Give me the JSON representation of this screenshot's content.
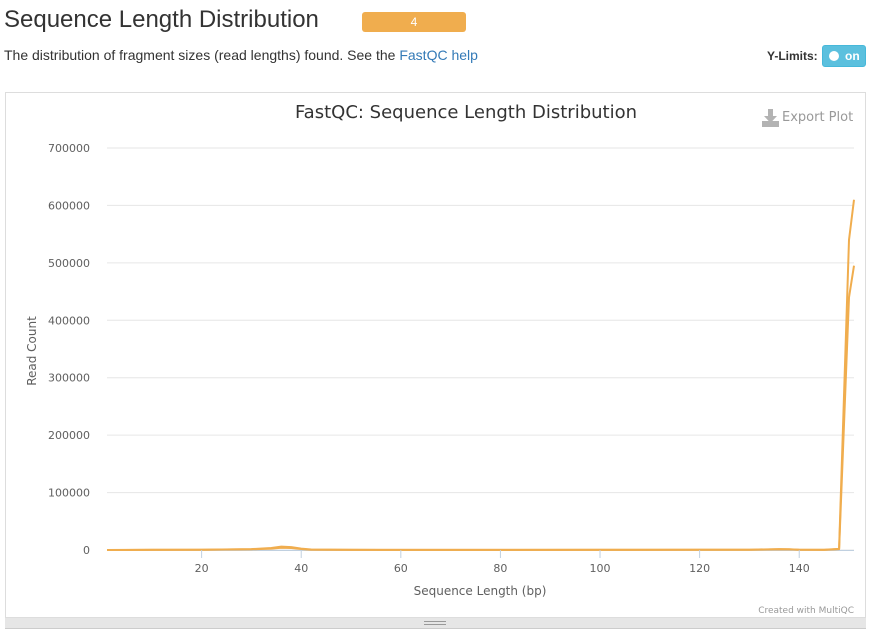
{
  "header": {
    "title": "Sequence Length Distribution",
    "badge": "4",
    "badge_color": "#f0ad4e"
  },
  "description": {
    "text": "The distribution of fragment sizes (read lengths) found. See the ",
    "link_text": "FastQC help"
  },
  "controls": {
    "ylimits_label": "Y-Limits:",
    "ylimits_toggle": "on"
  },
  "plot": {
    "export_label": "Export Plot",
    "credits": "Created with MultiQC"
  },
  "chart_data": {
    "type": "line",
    "title": "FastQC: Sequence Length Distribution",
    "xlabel": "Sequence Length (bp)",
    "ylabel": "Read Count",
    "xlim": [
      1,
      151
    ],
    "ylim": [
      0,
      700000
    ],
    "x_ticks": [
      20,
      40,
      60,
      80,
      100,
      120,
      140
    ],
    "y_ticks": [
      0,
      100000,
      200000,
      300000,
      400000,
      500000,
      600000,
      700000
    ],
    "grid": true,
    "legend": "none",
    "series": [
      {
        "color": "#f0ad4e",
        "x": [
          1,
          10,
          20,
          30,
          34,
          36,
          38,
          40,
          42,
          50,
          60,
          80,
          100,
          120,
          130,
          136,
          138,
          140,
          145,
          148,
          150,
          151
        ],
        "y": [
          0,
          300,
          600,
          1500,
          3500,
          6000,
          5000,
          2500,
          800,
          300,
          200,
          200,
          300,
          600,
          500,
          1500,
          1200,
          500,
          300,
          2000,
          540000,
          610000
        ]
      },
      {
        "color": "#f0ad4e",
        "x": [
          1,
          10,
          20,
          30,
          34,
          36,
          38,
          40,
          42,
          50,
          60,
          80,
          100,
          120,
          130,
          136,
          138,
          140,
          145,
          148,
          150,
          151
        ],
        "y": [
          0,
          200,
          500,
          1200,
          2500,
          4000,
          3500,
          1800,
          600,
          250,
          200,
          200,
          250,
          500,
          400,
          1200,
          1000,
          400,
          250,
          1500,
          440000,
          495000
        ]
      }
    ]
  }
}
